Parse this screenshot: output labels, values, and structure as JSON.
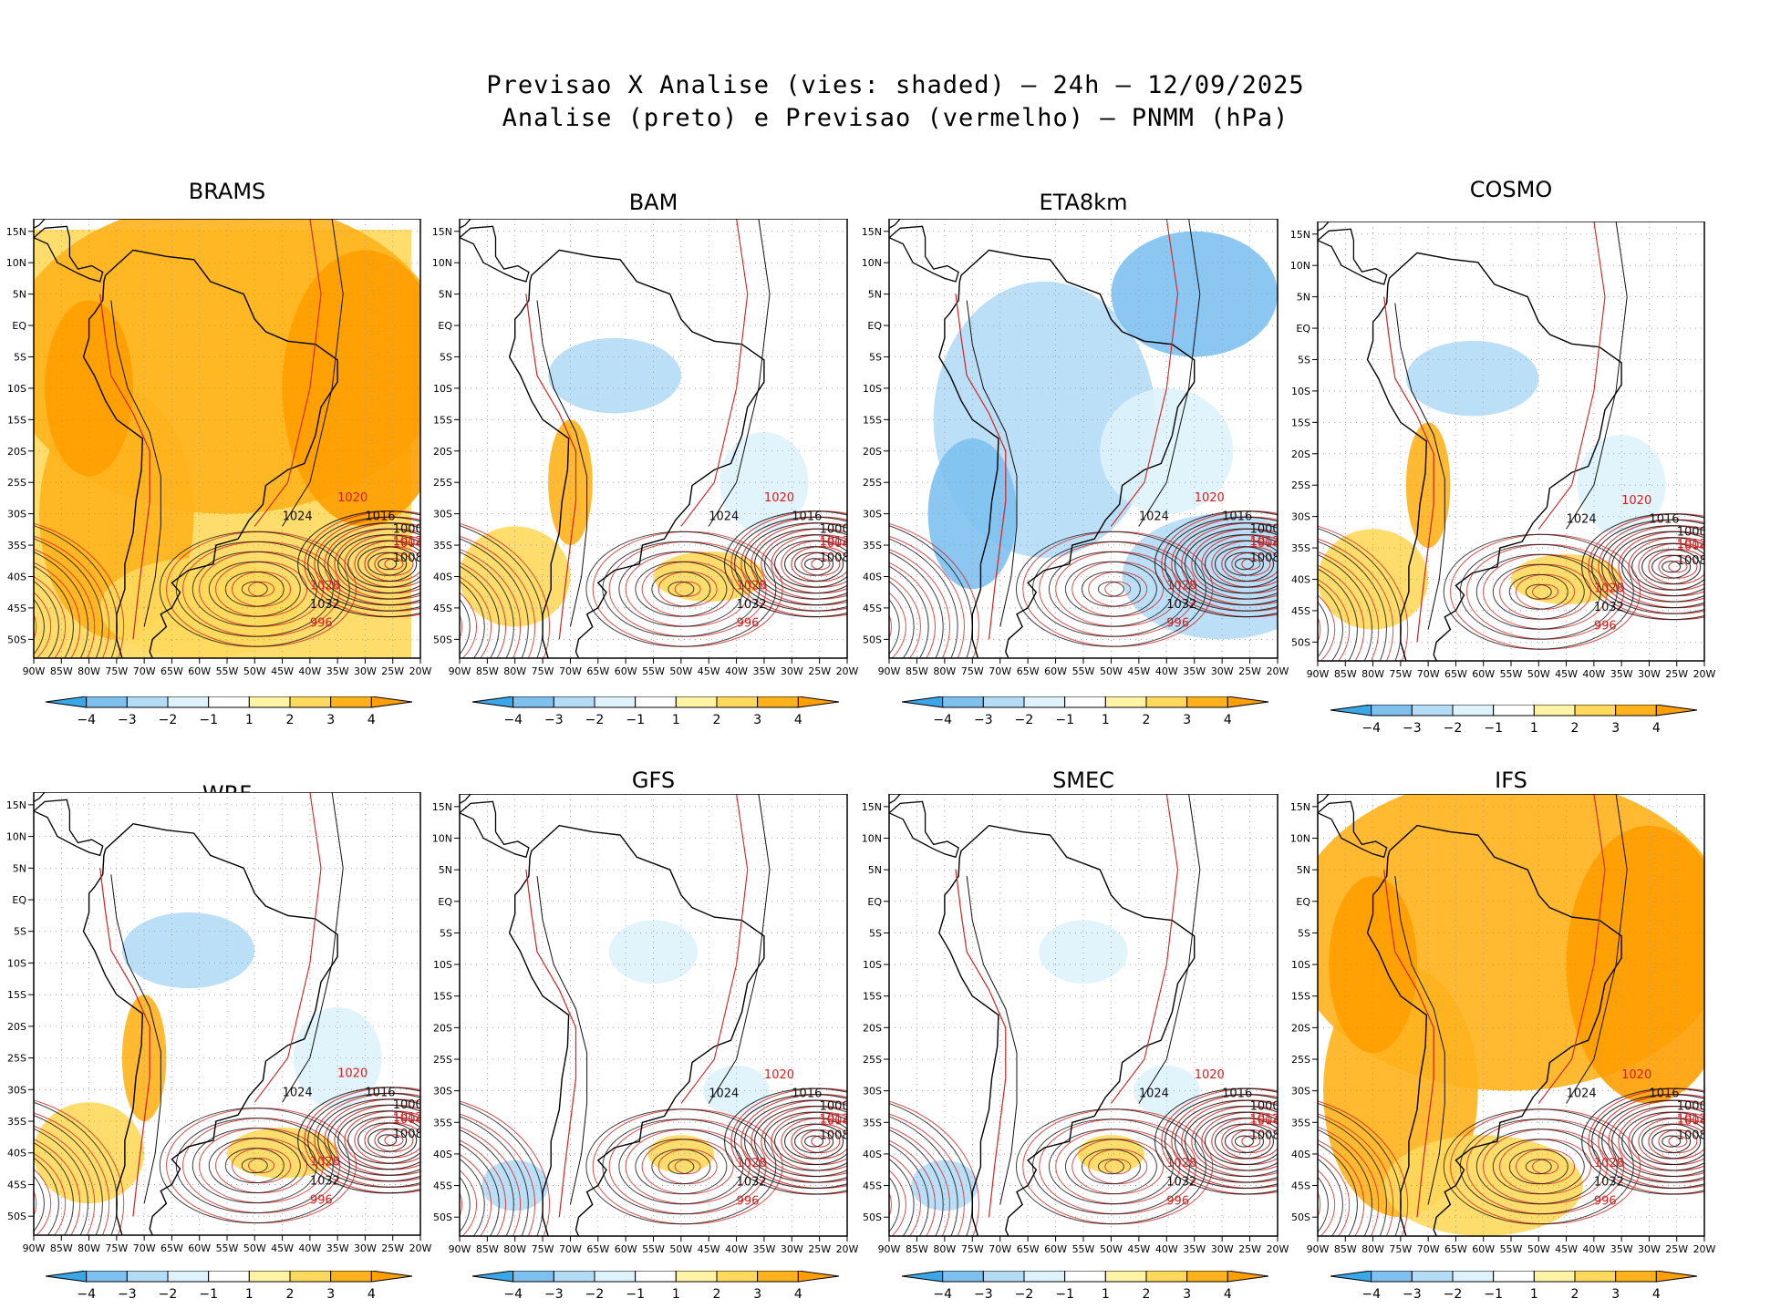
{
  "title_line1": "Previsao X Analise (vies: shaded) – 24h – 12/09/2025",
  "title_line2": "Analise (preto) e Previsao (vermelho) – PNMM (hPa)",
  "chart_data": {
    "type": "heatmap",
    "description_fields": "Mean sea level pressure bias maps (forecast minus analysis) with analysis (black) and forecast (red) isobars",
    "x_ticks": [
      "90W",
      "85W",
      "80W",
      "75W",
      "70W",
      "65W",
      "60W",
      "55W",
      "50W",
      "45W",
      "40W",
      "35W",
      "30W",
      "25W",
      "20W"
    ],
    "y_ticks": [
      "15N",
      "10N",
      "5N",
      "EQ",
      "5S",
      "10S",
      "15S",
      "20S",
      "25S",
      "30S",
      "35S",
      "40S",
      "45S",
      "50S"
    ],
    "lon_range": [
      -90,
      -20
    ],
    "lat_range": [
      -53,
      17
    ],
    "colorbar": {
      "labels": [
        "−4",
        "−3",
        "−2",
        "−1",
        "1",
        "2",
        "3",
        "4"
      ],
      "colors": [
        "#3aa7e8",
        "#7ec1ef",
        "#b4dcf6",
        "#def2fb",
        "#ffffff",
        "#fff3a6",
        "#ffd95c",
        "#ffb21c",
        "#ff9f00"
      ]
    },
    "isobar_labels": [
      "996",
      "1000",
      "1004",
      "1008",
      "1012",
      "1016",
      "1020",
      "1024",
      "1028",
      "1032"
    ],
    "panels": [
      {
        "model": "BRAMS",
        "bias_tendency": "positive"
      },
      {
        "model": "BAM",
        "bias_tendency": "mixed"
      },
      {
        "model": "ETA8km",
        "bias_tendency": "negative"
      },
      {
        "model": "COSMO",
        "bias_tendency": "mixed"
      },
      {
        "model": "WRF",
        "bias_tendency": "mixed"
      },
      {
        "model": "GFS",
        "bias_tendency": "neutral"
      },
      {
        "model": "SMEC",
        "bias_tendency": "neutral"
      },
      {
        "model": "IFS",
        "bias_tendency": "positive"
      }
    ]
  }
}
